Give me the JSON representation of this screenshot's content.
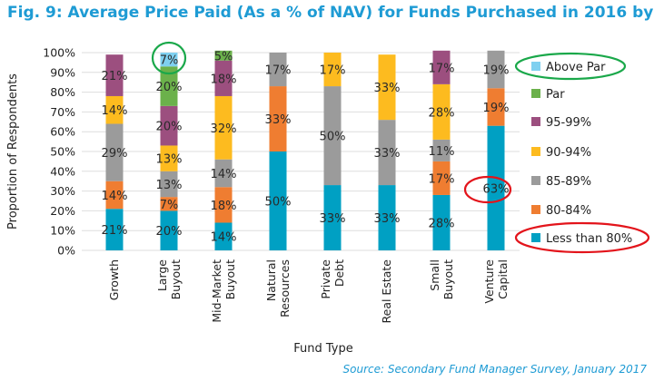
{
  "title": "Fig. 9: Average Price Paid (As a % of NAV) for Funds Purchased in 2016 by Type",
  "source": "Source: Secondary Fund Manager Survey, January 2017",
  "chart_data": {
    "type": "bar",
    "stacked": true,
    "title": "Fig. 9: Average Price Paid (As a % of NAV) for Funds Purchased in 2016 by Type",
    "xlabel": "Fund Type",
    "ylabel": "Proportion of Respondents",
    "ylim": [
      0,
      100
    ],
    "yticks": [
      "0%",
      "10%",
      "20%",
      "30%",
      "40%",
      "50%",
      "60%",
      "70%",
      "80%",
      "90%",
      "100%"
    ],
    "grid": true,
    "legend_position": "right",
    "categories": [
      [
        "Growth"
      ],
      [
        "Large",
        "Buyout"
      ],
      [
        "Mid-Market",
        "Buyout"
      ],
      [
        "Natural",
        "Resources"
      ],
      [
        "Private",
        "Debt"
      ],
      [
        "Real Estate"
      ],
      [
        "Small",
        "Buyout"
      ],
      [
        "Venture",
        "Capital"
      ]
    ],
    "series": [
      {
        "name": "Less than 80%",
        "color": "#00a0c3",
        "values": [
          21,
          20,
          14,
          50,
          33,
          33,
          28,
          63
        ]
      },
      {
        "name": "80-84%",
        "color": "#ef7d31",
        "values": [
          14,
          7,
          18,
          33,
          0,
          0,
          17,
          19
        ]
      },
      {
        "name": "85-89%",
        "color": "#9b9b9b",
        "values": [
          29,
          13,
          14,
          17,
          50,
          33,
          11,
          19
        ]
      },
      {
        "name": "90-94%",
        "color": "#fdbb1f",
        "values": [
          14,
          13,
          32,
          0,
          17,
          33,
          28,
          0
        ]
      },
      {
        "name": "95-99%",
        "color": "#9c4f7f",
        "values": [
          21,
          20,
          18,
          0,
          0,
          0,
          17,
          0
        ]
      },
      {
        "name": "Par",
        "color": "#6bb14b",
        "values": [
          0,
          20,
          5,
          0,
          0,
          0,
          0,
          0
        ]
      },
      {
        "name": "Above Par",
        "color": "#7fd0f0",
        "values": [
          0,
          7,
          0,
          0,
          0,
          0,
          0,
          0
        ]
      }
    ],
    "annotations": [
      {
        "type": "circle",
        "color": "#1aa84a",
        "target": "Large Buyout Above Par 7%"
      },
      {
        "type": "circle",
        "color": "#e3141b",
        "target": "Venture Capital Less than 80% 63%"
      },
      {
        "type": "circle",
        "color": "#1aa84a",
        "target": "legend Above Par"
      },
      {
        "type": "circle",
        "color": "#e3141b",
        "target": "legend Less than 80%"
      }
    ]
  }
}
